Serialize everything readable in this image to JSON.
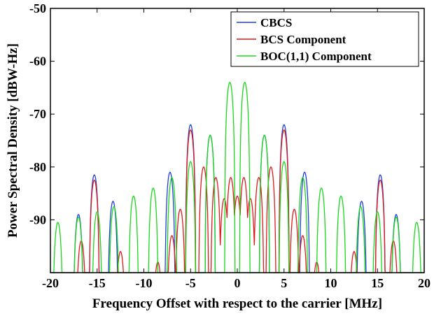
{
  "chart_data": {
    "type": "line",
    "xlabel": "Frequency Offset with respect to the carrier [MHz]",
    "ylabel": "Power Spectral Density [dBW-Hz]",
    "xlim": [
      -20,
      20
    ],
    "ylim": [
      -100,
      -50
    ],
    "xticks": [
      -20,
      -15,
      -10,
      -5,
      0,
      5,
      10,
      15,
      20
    ],
    "yticks": [
      -50,
      -60,
      -70,
      -80,
      -90
    ],
    "grid": false,
    "legend_position": "top-right",
    "series": [
      {
        "name": "CBCS",
        "color": "#1f3fd8",
        "lobes": [
          {
            "x": -17.0,
            "peak": -89.0
          },
          {
            "x": -15.3,
            "peak": -81.5
          },
          {
            "x": -13.3,
            "peak": -86.5
          },
          {
            "x": -7.2,
            "peak": -81.0
          },
          {
            "x": -5.0,
            "peak": -72.0
          },
          {
            "x": -2.9,
            "peak": -74.0
          },
          {
            "x": 2.9,
            "peak": -74.0
          },
          {
            "x": 5.0,
            "peak": -72.0
          },
          {
            "x": 7.2,
            "peak": -81.0
          },
          {
            "x": 13.3,
            "peak": -86.5
          },
          {
            "x": 15.3,
            "peak": -81.5
          },
          {
            "x": 17.0,
            "peak": -89.0
          }
        ]
      },
      {
        "name": "BCS Component",
        "color": "#e01818",
        "lobes": [
          {
            "x": -16.7,
            "peak": -94.0
          },
          {
            "x": -15.3,
            "peak": -82.5
          },
          {
            "x": -12.5,
            "peak": -96.0
          },
          {
            "x": -8.5,
            "peak": -98.0
          },
          {
            "x": -7.0,
            "peak": -93.0
          },
          {
            "x": -6.1,
            "peak": -88.0
          },
          {
            "x": -5.0,
            "peak": -73.0
          },
          {
            "x": -3.6,
            "peak": -80.0
          },
          {
            "x": -2.3,
            "peak": -82.0
          },
          {
            "x": -1.4,
            "peak": -86.0
          },
          {
            "x": -0.7,
            "peak": -82.0
          },
          {
            "x": 0.0,
            "peak": -85.5
          },
          {
            "x": 0.7,
            "peak": -82.0
          },
          {
            "x": 1.4,
            "peak": -86.0
          },
          {
            "x": 2.3,
            "peak": -82.0
          },
          {
            "x": 3.6,
            "peak": -80.0
          },
          {
            "x": 5.0,
            "peak": -73.0
          },
          {
            "x": 6.1,
            "peak": -88.0
          },
          {
            "x": 7.0,
            "peak": -93.0
          },
          {
            "x": 8.5,
            "peak": -98.0
          },
          {
            "x": 12.5,
            "peak": -96.0
          },
          {
            "x": 15.3,
            "peak": -82.5
          },
          {
            "x": 16.7,
            "peak": -94.0
          }
        ]
      },
      {
        "name": "BOC(1,1) Component",
        "color": "#18d818",
        "lobes": [
          {
            "x": -19.2,
            "peak": -90.5
          },
          {
            "x": -17.0,
            "peak": -89.5
          },
          {
            "x": -15.0,
            "peak": -88.5
          },
          {
            "x": -13.2,
            "peak": -87.5
          },
          {
            "x": -11.1,
            "peak": -85.5
          },
          {
            "x": -9.0,
            "peak": -84.0
          },
          {
            "x": -7.0,
            "peak": -82.0
          },
          {
            "x": -5.0,
            "peak": -79.0
          },
          {
            "x": -2.9,
            "peak": -74.0
          },
          {
            "x": -0.8,
            "peak": -64.0
          },
          {
            "x": 0.8,
            "peak": -64.0
          },
          {
            "x": 2.9,
            "peak": -74.0
          },
          {
            "x": 5.0,
            "peak": -79.0
          },
          {
            "x": 7.0,
            "peak": -82.0
          },
          {
            "x": 9.0,
            "peak": -84.0
          },
          {
            "x": 11.1,
            "peak": -85.5
          },
          {
            "x": 13.2,
            "peak": -87.5
          },
          {
            "x": 15.0,
            "peak": -88.5
          },
          {
            "x": 17.0,
            "peak": -89.5
          },
          {
            "x": 19.2,
            "peak": -90.5
          }
        ]
      }
    ]
  }
}
